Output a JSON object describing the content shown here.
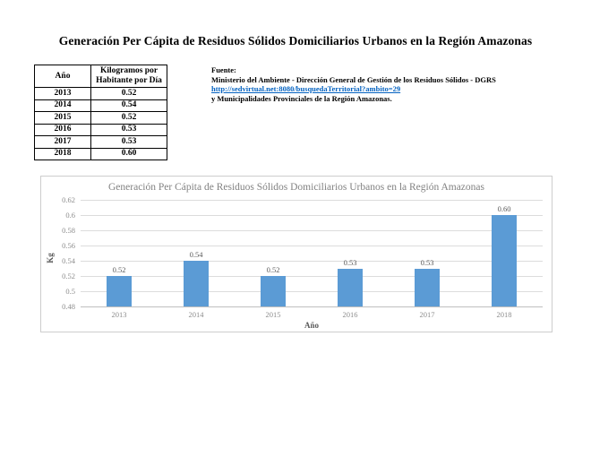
{
  "page": {
    "title": "Generación Per Cápita de Residuos Sólidos Domiciliarios Urbanos en la Región Amazonas"
  },
  "table": {
    "headers": [
      "Año",
      "Kilogramos por Habitante por Día"
    ],
    "rows": [
      [
        "2013",
        "0.52"
      ],
      [
        "2014",
        "0.54"
      ],
      [
        "2015",
        "0.52"
      ],
      [
        "2016",
        "0.53"
      ],
      [
        "2017",
        "0.53"
      ],
      [
        "2018",
        "0.60"
      ]
    ]
  },
  "source": {
    "label": "Fuente:",
    "line1": "Ministerio del Ambiente - Dirección General de Gestión de los Residuos Sólidos - DGRS",
    "link": "http://sedvirtual.net:8080/busquedaTerritorial?ambito=29",
    "line2": "y Municipalidades Provinciales de la Región Amazonas."
  },
  "chart_data": {
    "type": "bar",
    "title": "Generación Per Cápita de Residuos Sólidos Domiciliarios Urbanos en la Región Amazonas",
    "categories": [
      "2013",
      "2014",
      "2015",
      "2016",
      "2017",
      "2018"
    ],
    "values": [
      0.52,
      0.54,
      0.52,
      0.53,
      0.53,
      0.6
    ],
    "labels": [
      "0.52",
      "0.54",
      "0.52",
      "0.53",
      "0.53",
      "0.60"
    ],
    "xlabel": "Año",
    "ylabel": "Kg",
    "ylim": [
      0.48,
      0.62
    ],
    "yticks": [
      "0.62",
      "0.6",
      "0.58",
      "0.56",
      "0.54",
      "0.52",
      "0.5",
      "0.48"
    ],
    "grid": true,
    "legend": "none",
    "bar_color": "#5B9BD5"
  }
}
